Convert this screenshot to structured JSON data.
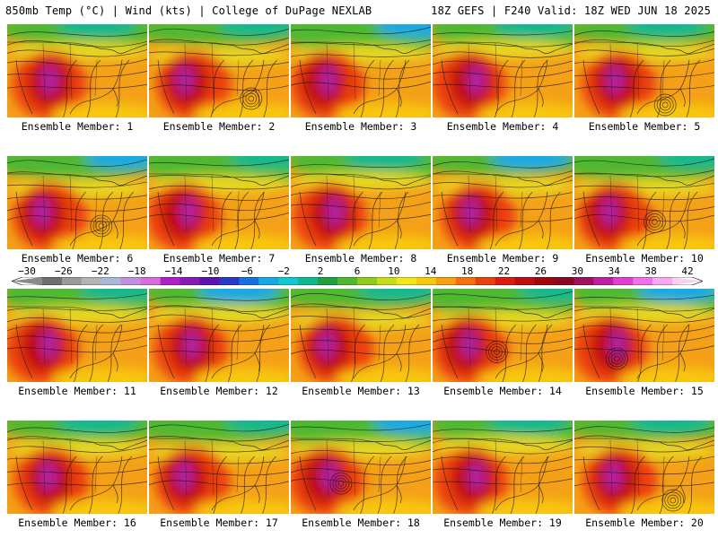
{
  "header": {
    "left_title": "850mb Temp (°C) | Wind (kts) | College of DuPage NEXLAB",
    "right_title": "18Z GEFS | F240 Valid: 18Z WED JUN 18 2025"
  },
  "member_label_prefix": "Ensemble Member:",
  "members": [
    {
      "number": "1"
    },
    {
      "number": "2"
    },
    {
      "number": "3"
    },
    {
      "number": "4"
    },
    {
      "number": "5"
    },
    {
      "number": "6"
    },
    {
      "number": "7"
    },
    {
      "number": "8"
    },
    {
      "number": "9"
    },
    {
      "number": "10"
    },
    {
      "number": "11"
    },
    {
      "number": "12"
    },
    {
      "number": "13"
    },
    {
      "number": "14"
    },
    {
      "number": "15"
    },
    {
      "number": "16"
    },
    {
      "number": "17"
    },
    {
      "number": "18"
    },
    {
      "number": "19"
    },
    {
      "number": "20"
    }
  ],
  "colorbar": {
    "ticks": [
      "−30",
      "−26",
      "−22",
      "−18",
      "−14",
      "−10",
      "−6",
      "−2",
      "2",
      "6",
      "10",
      "14",
      "18",
      "22",
      "26",
      "30",
      "34",
      "38",
      "42"
    ],
    "colors": [
      "#8a8a8a",
      "#6f6f6f",
      "#9a9a9a",
      "#b4b4b4",
      "#a9b8d8",
      "#c090e0",
      "#d86cd8",
      "#b020c8",
      "#8a1ab8",
      "#5a14b0",
      "#2838c8",
      "#1870e0",
      "#18a8e8",
      "#10c8d0",
      "#10b890",
      "#20a040",
      "#50b830",
      "#90cc20",
      "#c8dc18",
      "#f0e818",
      "#f8c810",
      "#f8a010",
      "#f47010",
      "#ec4010",
      "#e01810",
      "#c00c10",
      "#a00810",
      "#8c0820",
      "#a01060",
      "#c020a0",
      "#e040d0",
      "#f070e8",
      "#f8a8f0",
      "#fad0f4"
    ]
  }
}
